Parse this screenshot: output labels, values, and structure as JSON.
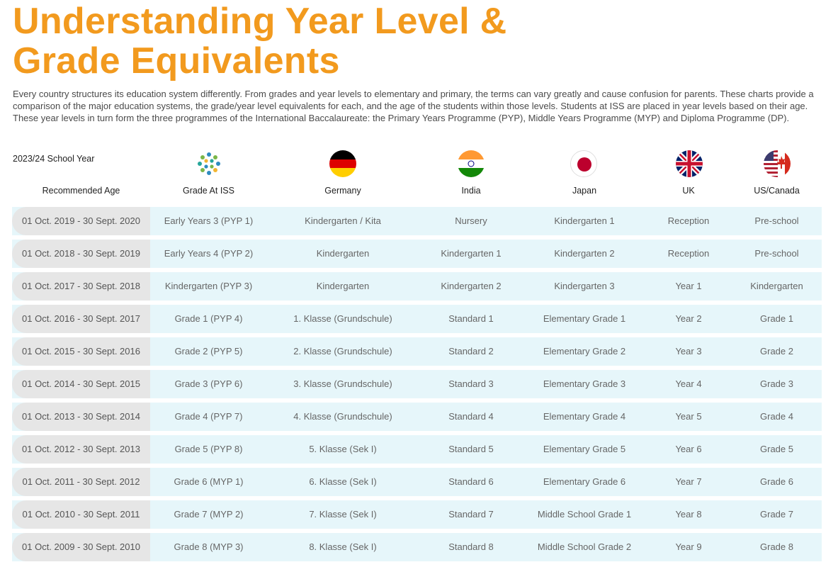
{
  "title": {
    "line1": "Understanding Year Level &",
    "line2": "Grade Equivalents"
  },
  "intro": "Every country structures its education system differently. From grades and year levels to elementary and primary, the terms can vary greatly and cause confusion for parents. These charts provide a comparison of the major education systems, the grade/year level equivalents for each, and the age of the students within those levels. Students at ISS are placed in year levels based on their age. These year levels in turn form the three programmes of the International Baccalaureate: the Primary Years Programme (PYP), Middle Years Programme (MYP) and Diploma Programme (DP).",
  "school_year": "2023/24 School Year",
  "headers": {
    "age": "Recommended Age",
    "iss": "Grade At ISS",
    "germany": "Germany",
    "india": "India",
    "japan": "Japan",
    "uk": "UK",
    "us": "US/Canada"
  },
  "icons": {
    "iss": "iss-logo-icon",
    "germany": "germany-flag-icon",
    "india": "india-flag-icon",
    "japan": "japan-flag-icon",
    "uk": "uk-flag-icon",
    "us": "us-canada-flag-icon"
  },
  "colors": {
    "title": "#f29a1e",
    "row_bg": "#e6f6fa",
    "age_bg": "#e6e6e6"
  },
  "rows": [
    {
      "age": "01 Oct. 2019 - 30 Sept. 2020",
      "iss": "Early Years 3 (PYP 1)",
      "germany": "Kindergarten / Kita",
      "india": "Nursery",
      "japan": "Kindergarten 1",
      "uk": "Reception",
      "us": "Pre-school"
    },
    {
      "age": "01 Oct. 2018 - 30 Sept. 2019",
      "iss": "Early Years 4 (PYP 2)",
      "germany": "Kindergarten",
      "india": "Kindergarten 1",
      "japan": "Kindergarten 2",
      "uk": "Reception",
      "us": "Pre-school"
    },
    {
      "age": "01 Oct. 2017 - 30 Sept. 2018",
      "iss": "Kindergarten (PYP 3)",
      "germany": "Kindergarten",
      "india": "Kindergarten 2",
      "japan": "Kindergarten 3",
      "uk": "Year 1",
      "us": "Kindergarten"
    },
    {
      "age": "01 Oct. 2016 - 30 Sept. 2017",
      "iss": "Grade 1 (PYP 4)",
      "germany": "1. Klasse (Grundschule)",
      "india": "Standard 1",
      "japan": "Elementary Grade 1",
      "uk": "Year 2",
      "us": "Grade 1"
    },
    {
      "age": "01 Oct. 2015 - 30 Sept. 2016",
      "iss": "Grade 2 (PYP 5)",
      "germany": "2. Klasse (Grundschule)",
      "india": "Standard 2",
      "japan": "Elementary Grade 2",
      "uk": "Year 3",
      "us": "Grade 2"
    },
    {
      "age": "01 Oct. 2014 - 30 Sept. 2015",
      "iss": "Grade 3 (PYP 6)",
      "germany": "3. Klasse (Grundschule)",
      "india": "Standard 3",
      "japan": "Elementary Grade 3",
      "uk": "Year 4",
      "us": "Grade 3"
    },
    {
      "age": "01 Oct. 2013 - 30 Sept. 2014",
      "iss": "Grade 4 (PYP 7)",
      "germany": "4. Klasse (Grundschule)",
      "india": "Standard 4",
      "japan": "Elementary Grade 4",
      "uk": "Year 5",
      "us": "Grade 4"
    },
    {
      "age": "01 Oct. 2012 - 30 Sept. 2013",
      "iss": "Grade 5 (PYP 8)",
      "germany": "5. Klasse (Sek I)",
      "india": "Standard 5",
      "japan": "Elementary Grade 5",
      "uk": "Year 6",
      "us": "Grade 5"
    },
    {
      "age": "01 Oct. 2011 - 30 Sept. 2012",
      "iss": "Grade 6 (MYP 1)",
      "germany": "6. Klasse (Sek I)",
      "india": "Standard 6",
      "japan": "Elementary Grade 6",
      "uk": "Year 7",
      "us": "Grade 6"
    },
    {
      "age": "01 Oct. 2010 - 30 Sept. 2011",
      "iss": "Grade 7 (MYP 2)",
      "germany": "7. Klasse (Sek I)",
      "india": "Standard 7",
      "japan": "Middle School Grade 1",
      "uk": "Year 8",
      "us": "Grade 7"
    },
    {
      "age": "01 Oct. 2009 - 30 Sept. 2010",
      "iss": "Grade 8 (MYP 3)",
      "germany": "8. Klasse (Sek I)",
      "india": "Standard 8",
      "japan": "Middle School Grade 2",
      "uk": "Year 9",
      "us": "Grade 8"
    }
  ]
}
